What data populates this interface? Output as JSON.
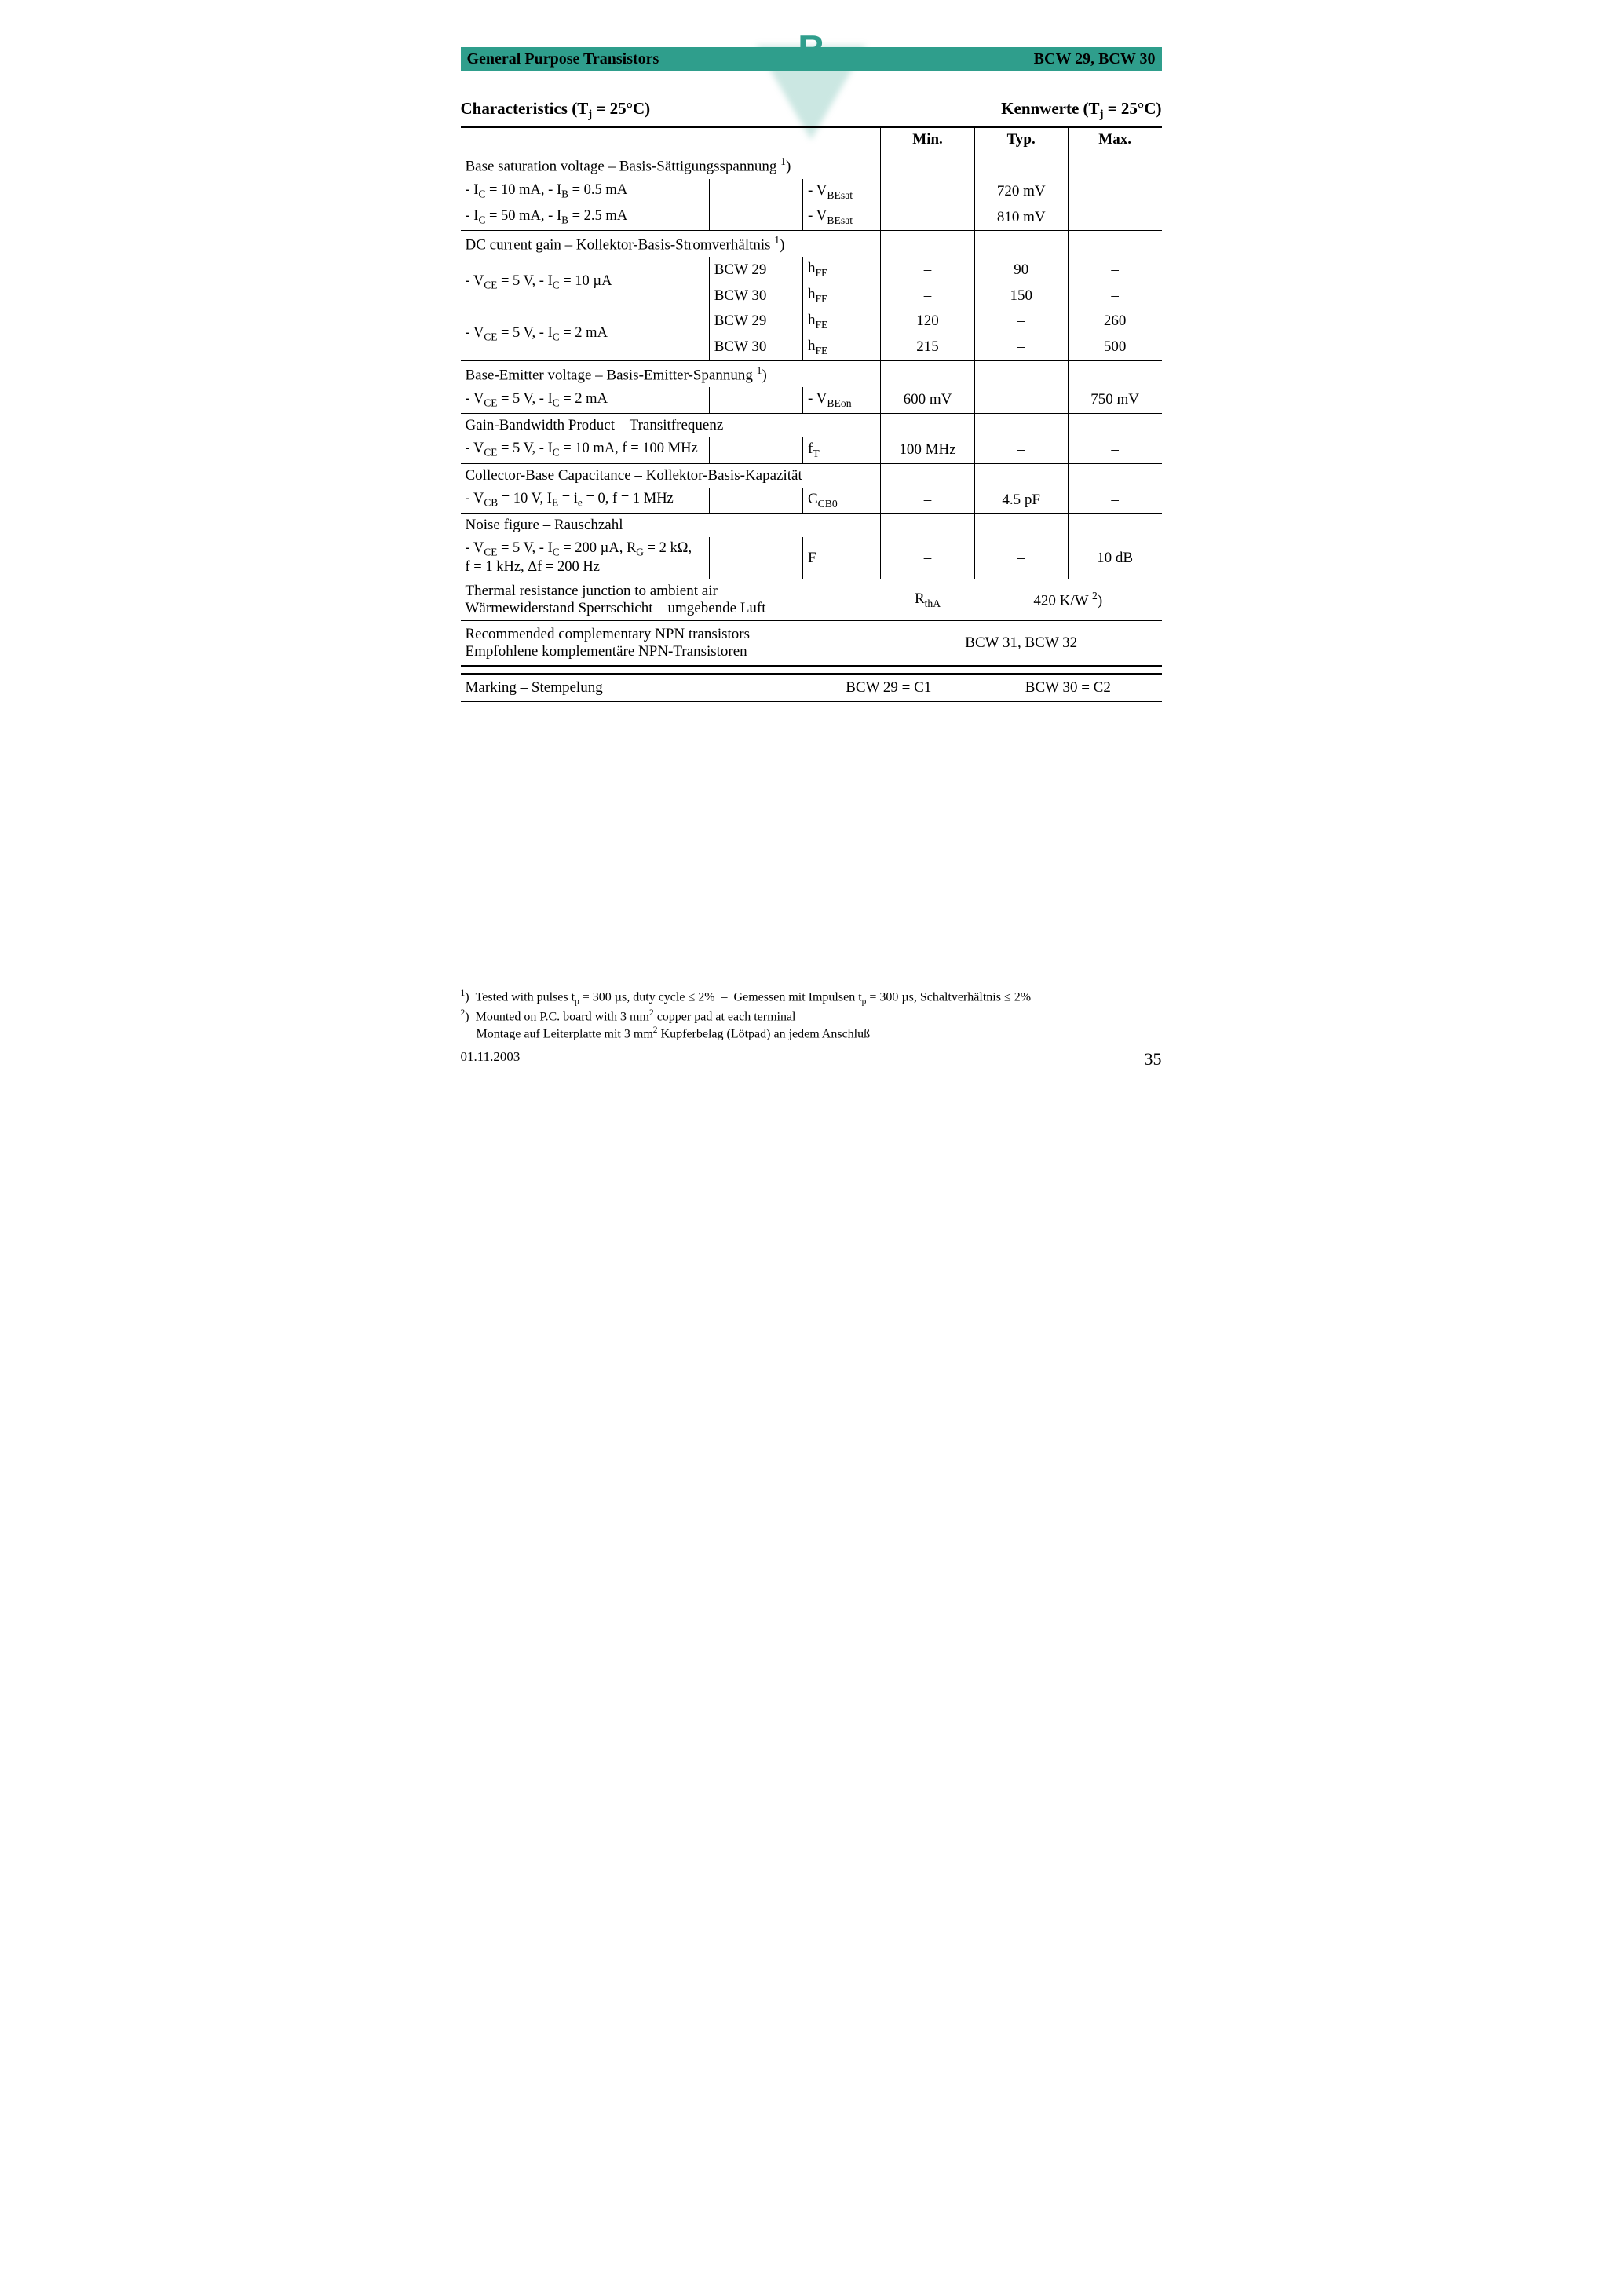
{
  "header": {
    "left": "General Purpose Transistors",
    "right": "BCW 29, BCW 30",
    "logo_letter": "R"
  },
  "titles": {
    "left": "Characteristics (T<sub>j</sub> = 25°C)",
    "right": "Kennwerte (T<sub>j</sub> = 25°C)"
  },
  "columns": {
    "min": "Min.",
    "typ": "Typ.",
    "max": "Max."
  },
  "sections": [
    {
      "header": "Base saturation voltage – Basis-Sättigungsspannung <span class='sup'>1</span>)",
      "rows": [
        {
          "cond": "- I<span class='sub'>C</span> = 10 mA, - I<span class='sub'>B</span> = 0.5 mA",
          "sub": "",
          "sym": "- V<span class='sub'>BEsat</span>",
          "min": "–",
          "typ": "720 mV",
          "max": "–"
        },
        {
          "cond": "- I<span class='sub'>C</span> = 50 mA, - I<span class='sub'>B</span> = 2.5 mA",
          "sub": "",
          "sym": "- V<span class='sub'>BEsat</span>",
          "min": "–",
          "typ": "810 mV",
          "max": "–"
        }
      ]
    },
    {
      "header": "DC current gain – Kollektor-Basis-Stromverhältnis <span class='sup'>1</span>)",
      "rows": [
        {
          "cond": "- V<span class='sub'>CE</span> = 5 V, - I<span class='sub'>C</span> = 10 µA",
          "sub": "BCW 29",
          "sym": "h<span class='sub'>FE</span>",
          "min": "–",
          "typ": "90",
          "max": "–",
          "rowspan": 2
        },
        {
          "cond": "",
          "sub": "BCW 30",
          "sym": "h<span class='sub'>FE</span>",
          "min": "–",
          "typ": "150",
          "max": "–",
          "skip_cond": true
        },
        {
          "cond": "- V<span class='sub'>CE</span> = 5 V, - I<span class='sub'>C</span> = 2 mA",
          "sub": "BCW 29",
          "sym": "h<span class='sub'>FE</span>",
          "min": "120",
          "typ": "–",
          "max": "260",
          "rowspan": 2
        },
        {
          "cond": "",
          "sub": "BCW 30",
          "sym": "h<span class='sub'>FE</span>",
          "min": "215",
          "typ": "–",
          "max": "500",
          "skip_cond": true
        }
      ]
    },
    {
      "header": "Base-Emitter voltage – Basis-Emitter-Spannung <span class='sup'>1</span>)",
      "rows": [
        {
          "cond": "- V<span class='sub'>CE</span> = 5 V, - I<span class='sub'>C</span> = 2 mA",
          "sub": "",
          "sym": "- V<span class='sub'>BEon</span>",
          "min": "600 mV",
          "typ": "–",
          "max": "750 mV"
        }
      ]
    },
    {
      "header": "Gain-Bandwidth Product – Transitfrequenz",
      "rows": [
        {
          "cond": "- V<span class='sub'>CE</span> = 5 V, - I<span class='sub'>C</span> = 10 mA, f = 100 MHz",
          "sub": "",
          "sym": "f<span class='sub'>T</span>",
          "min": "100 MHz",
          "typ": "–",
          "max": "–"
        }
      ]
    },
    {
      "header": "Collector-Base Capacitance – Kollektor-Basis-Kapazität",
      "rows": [
        {
          "cond": "- V<span class='sub'>CB</span> = 10 V, I<span class='sub'>E</span> = i<span class='sub'>e</span> = 0, f = 1 MHz",
          "sub": "",
          "sym": "C<span class='sub'>CB0</span>",
          "min": "–",
          "typ": "4.5 pF",
          "max": "–"
        }
      ]
    },
    {
      "header": "Noise figure – Rauschzahl",
      "rows": [
        {
          "cond": "- V<span class='sub'>CE</span> = 5 V, - I<span class='sub'>C</span> = 200 µA, R<span class='sub'>G</span> = 2 kΩ,<br>f = 1 kHz, Δf = 200 Hz",
          "sub": "",
          "sym": "F",
          "min": "–",
          "typ": "–",
          "max": "10 dB"
        }
      ]
    }
  ],
  "thermal": {
    "label": "Thermal resistance junction to ambient air<br>Wärmewiderstand Sperrschicht – umgebende Luft",
    "sym": "R<span class='sub'>thA</span>",
    "val": "420 K/W <span class='sup'>2</span>)"
  },
  "complementary": {
    "label": "Recommended complementary NPN transistors<br>Empfohlene komplementäre NPN-Transistoren",
    "val": "BCW 31, BCW 32"
  },
  "marking": {
    "label": "Marking – Stempelung",
    "v1": "BCW 29 = C1",
    "v2": "BCW 30 = C2"
  },
  "footnotes": [
    "<span class='sup'>1</span>)&nbsp;&nbsp;Tested with pulses t<span class='sub'>p</span> = 300 µs, duty cycle ≤ 2%&nbsp;&nbsp;–&nbsp;&nbsp;Gemessen mit Impulsen t<span class='sub'>p</span> = 300 µs, Schaltverhältnis ≤ 2%",
    "<span class='sup'>2</span>)&nbsp;&nbsp;Mounted on P.C. board with 3 mm<span class='sup'>2</span> copper pad at each terminal",
    "&nbsp;&nbsp;&nbsp;&nbsp;&nbsp;Montage auf Leiterplatte mit 3 mm<span class='sup'>2</span> Kupferbelag (Lötpad) an jedem Anschluß"
  ],
  "footer": {
    "date": "01.11.2003",
    "page": "35"
  }
}
